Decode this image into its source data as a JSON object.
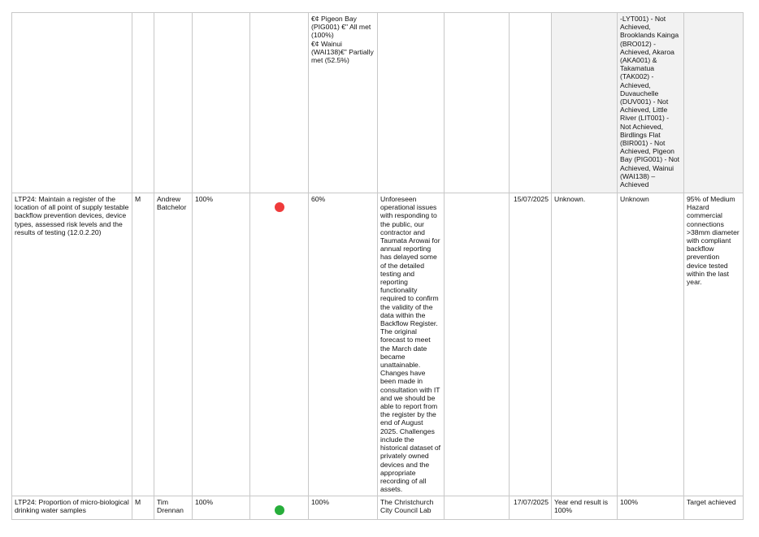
{
  "rows": [
    {
      "measure": "",
      "priority": "",
      "owner": "",
      "completion": "",
      "status": "",
      "target": "",
      "target_lines": [
        "€¢ Pigeon Bay (PIG001) €\" All met (100%)",
        "€¢ Wainui (WAI138)€\" Partially met (52.5%)"
      ],
      "commentary": "",
      "col7": "",
      "date": "",
      "prior_result": "",
      "result": "-LYT001) - Not Achieved, Brooklands Kainga (BRO012) - Achieved, Akaroa (AKA001) & Takamatua (TAK002) - Achieved, Duvauchelle (DUV001) - Not Achieved, Little River (LIT001) - Not Achieved, Birdlings Flat (BIR001) - Not Achieved, Pigeon Bay (PIG001) - Not Achieved, Wainui (WAI138) – Achieved",
      "target_text": ""
    },
    {
      "measure": "LTP24: Maintain a register of the location of all point of supply testable backflow prevention devices, device types, assessed risk levels and the results of testing (12.0.2.20)",
      "priority": "M",
      "owner": "Andrew Batchelor",
      "completion": "100%",
      "status": "red",
      "target": "60%",
      "commentary": "Unforeseen operational issues with responding to the public, our contractor and Taumata Arowai for annual reporting has delayed some of the detailed testing and reporting functionality required to confirm the validity of the data within the Backflow Register. The original forecast to meet the March date became unattainable. Changes have been made in consultation with IT and we should be able to report from the register by the end of August 2025. Challenges include the historical dataset of privately owned devices and the appropriate recording of all assets.",
      "col7": "",
      "date": "15/07/2025",
      "prior_result": "Unknown.",
      "result": "Unknown",
      "target_text": "95% of Medium Hazard commercial connections >38mm diameter with compliant backflow prevention device tested within the last year."
    },
    {
      "measure": "LTP24: Proportion of micro-biological drinking water samples",
      "priority": "M",
      "owner": "Tim Drennan",
      "completion": "100%",
      "status": "green",
      "target": "100%",
      "commentary": "The Christchurch City Council Lab",
      "col7": "",
      "date": "17/07/2025",
      "prior_result": "Year end result is 100%",
      "result": "100%",
      "target_text": "Target achieved"
    }
  ],
  "colors": {
    "status_red": "#ef3b3b",
    "status_green": "#27ae3b",
    "shaded_cell": "#f2f2f2",
    "border": "#c8c8c8"
  }
}
